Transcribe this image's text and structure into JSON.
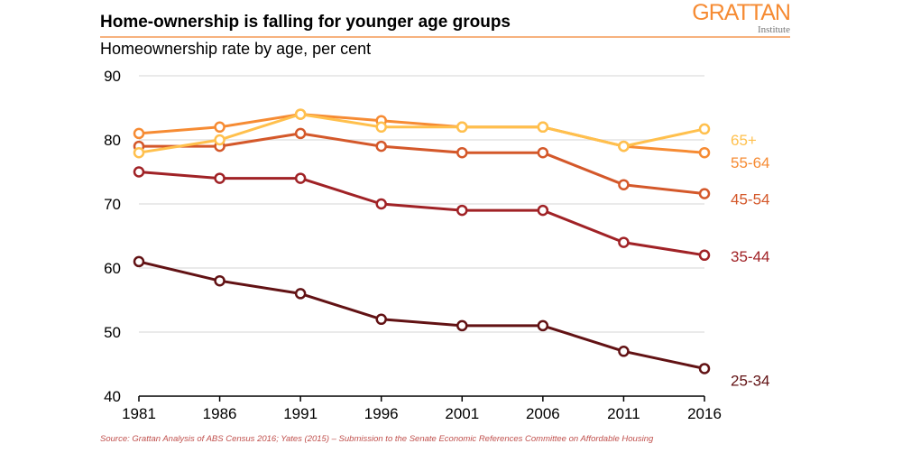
{
  "header": {
    "title": "Home-ownership is falling for younger age groups",
    "subtitle": "Homeownership rate by age, per cent",
    "logo": {
      "name": "GRATTAN",
      "sub": "Institute"
    }
  },
  "footer": {
    "source": "Source: Grattan Analysis of ABS Census 2016;  Yates (2015) – Submission to the Senate Economic References Committee on Affordable Housing"
  },
  "chart_data": {
    "type": "line",
    "title": "Home-ownership is falling for younger age groups",
    "subtitle": "Homeownership rate by age, per cent",
    "x": [
      1981,
      1986,
      1991,
      1996,
      2001,
      2006,
      2011,
      2016
    ],
    "x_tick_labels": [
      "1981",
      "1986",
      "1991",
      "1996",
      "2001",
      "2006",
      "2011",
      "2016"
    ],
    "ylim": [
      40,
      90
    ],
    "y_ticks": [
      40,
      50,
      60,
      70,
      80,
      90
    ],
    "y_tick_labels": [
      "40",
      "50",
      "60",
      "70",
      "80",
      "90"
    ],
    "grid": "horizontal",
    "legend": "direct labels at right",
    "series": [
      {
        "name": "65+",
        "color": "#ffc04d",
        "values": [
          78,
          80,
          84,
          82,
          82,
          82,
          79,
          81.7
        ]
      },
      {
        "name": "55-64",
        "color": "#f68b33",
        "values": [
          81,
          82,
          84,
          83,
          82,
          82,
          79,
          78
        ]
      },
      {
        "name": "45-54",
        "color": "#d4582a",
        "values": [
          79,
          79,
          81,
          79,
          78,
          78,
          73,
          71.6
        ]
      },
      {
        "name": "35-44",
        "color": "#a02226",
        "values": [
          75,
          74,
          74,
          70,
          69,
          69,
          64,
          62
        ]
      },
      {
        "name": "25-34",
        "color": "#621214",
        "values": [
          61,
          58,
          56,
          52,
          51,
          51,
          47,
          44.3
        ]
      }
    ],
    "label_values": {
      "65+": 80,
      "55-64": 76.5,
      "45-54": 70.8,
      "35-44": 61.8,
      "25-34": 42.5
    }
  }
}
